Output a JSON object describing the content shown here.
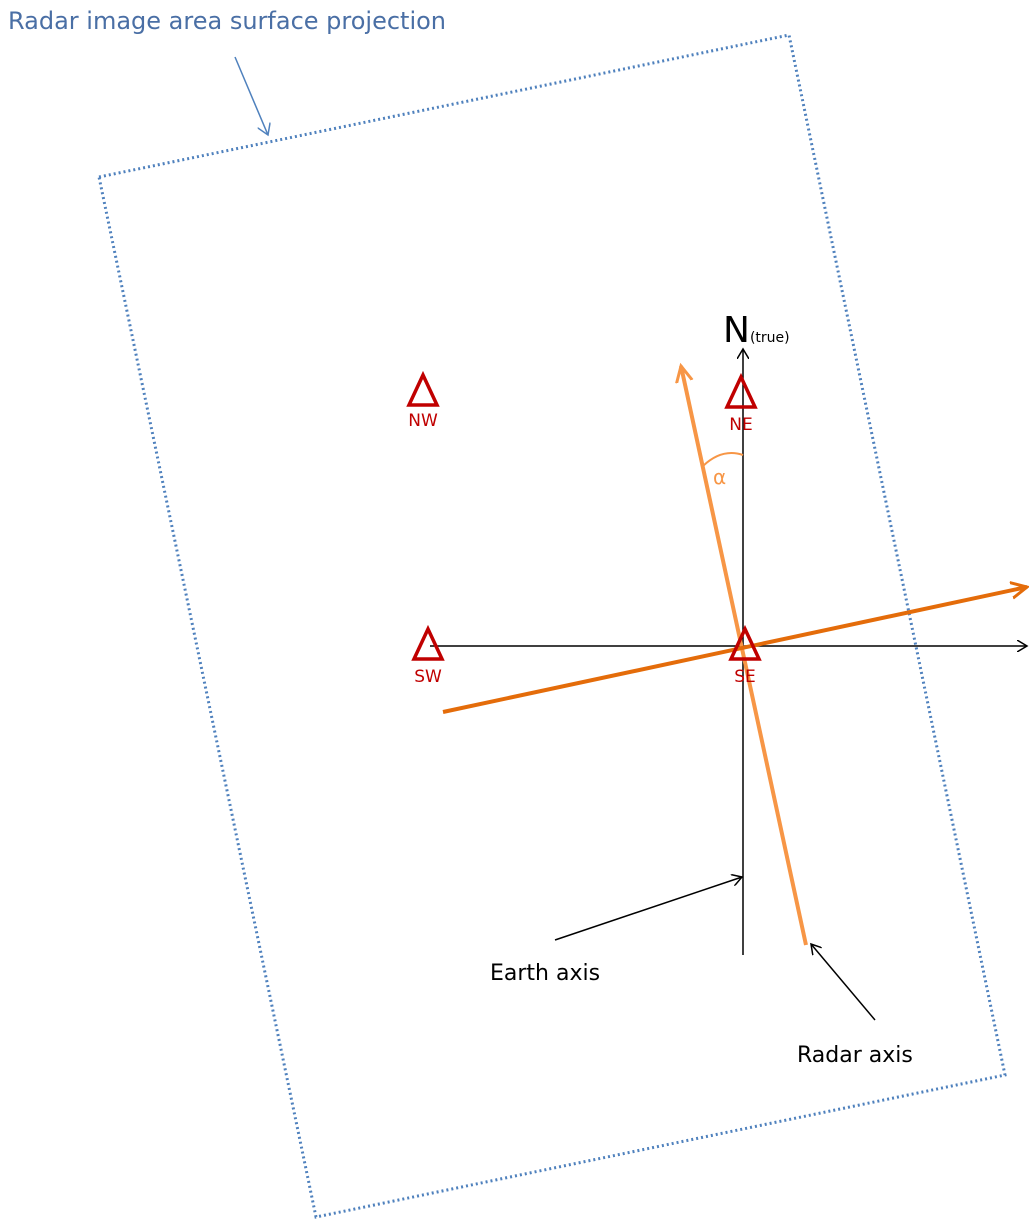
{
  "title": "Radar image area surface projection",
  "north": {
    "label": "N",
    "suffix": "(true)"
  },
  "angle_label": "α",
  "stations": {
    "nw": "NW",
    "ne": "NE",
    "sw": "SW",
    "se": "SE"
  },
  "callouts": {
    "earth_axis": "Earth axis",
    "radar_axis": "Radar axis"
  }
}
